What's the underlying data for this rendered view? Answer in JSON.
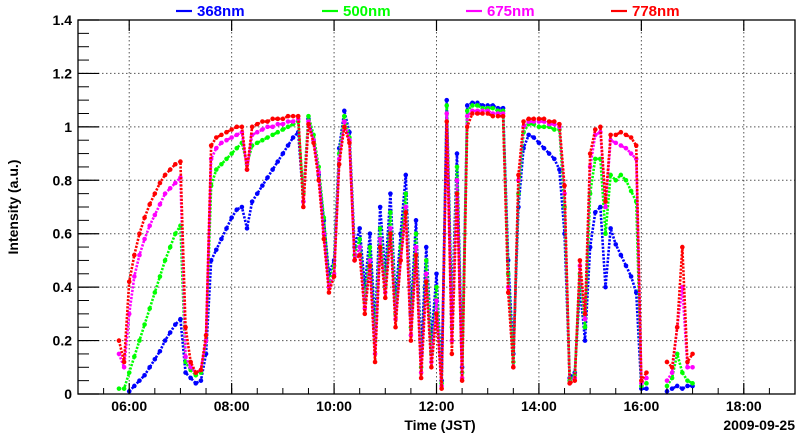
{
  "chart_data": {
    "type": "scatter",
    "title": "",
    "xlabel": "Time (JST)",
    "ylabel": "Intensity (a.u.)",
    "date_label": "2009-09-25",
    "xlim": [
      5.0,
      19.0
    ],
    "ylim": [
      0,
      1.4
    ],
    "grid": true,
    "legend_position": "top",
    "x_ticks": [
      {
        "value": 6,
        "label": "06:00"
      },
      {
        "value": 8,
        "label": "08:00"
      },
      {
        "value": 10,
        "label": "10:00"
      },
      {
        "value": 12,
        "label": "12:00"
      },
      {
        "value": 14,
        "label": "14:00"
      },
      {
        "value": 16,
        "label": "16:00"
      },
      {
        "value": 18,
        "label": "18:00"
      }
    ],
    "y_ticks": [
      {
        "value": 0,
        "label": "0"
      },
      {
        "value": 0.2,
        "label": "0.2"
      },
      {
        "value": 0.4,
        "label": "0.4"
      },
      {
        "value": 0.6,
        "label": "0.6"
      },
      {
        "value": 0.8,
        "label": "0.8"
      },
      {
        "value": 1.0,
        "label": "1"
      },
      {
        "value": 1.2,
        "label": "1.2"
      },
      {
        "value": 1.4,
        "label": "1.4"
      }
    ],
    "x": [
      5.8,
      5.9,
      6.0,
      6.1,
      6.2,
      6.3,
      6.4,
      6.5,
      6.6,
      6.7,
      6.8,
      6.9,
      7.0,
      7.1,
      7.2,
      7.3,
      7.4,
      7.5,
      7.6,
      7.7,
      7.8,
      7.9,
      8.0,
      8.1,
      8.2,
      8.3,
      8.4,
      8.5,
      8.6,
      8.7,
      8.8,
      8.9,
      9.0,
      9.1,
      9.2,
      9.3,
      9.4,
      9.5,
      9.6,
      9.7,
      9.8,
      9.9,
      10.0,
      10.1,
      10.2,
      10.3,
      10.4,
      10.5,
      10.6,
      10.7,
      10.8,
      10.9,
      11.0,
      11.1,
      11.2,
      11.3,
      11.4,
      11.5,
      11.6,
      11.7,
      11.8,
      11.9,
      12.0,
      12.1,
      12.2,
      12.3,
      12.4,
      12.5,
      12.6,
      12.7,
      12.8,
      12.9,
      13.0,
      13.1,
      13.2,
      13.3,
      13.4,
      13.5,
      13.6,
      13.7,
      13.8,
      13.9,
      14.0,
      14.1,
      14.2,
      14.3,
      14.4,
      14.5,
      14.6,
      14.7,
      14.8,
      14.9,
      15.0,
      15.1,
      15.2,
      15.3,
      15.4,
      15.5,
      15.6,
      15.7,
      15.8,
      15.9,
      16.0,
      16.1,
      16.2,
      16.3,
      16.4,
      16.5,
      16.6,
      16.7,
      16.8,
      16.9,
      17.0
    ],
    "series": [
      {
        "name": "368nm",
        "color": "#0000ff",
        "values": [
          null,
          null,
          0.01,
          0.03,
          0.05,
          0.07,
          0.1,
          0.13,
          0.16,
          0.2,
          0.23,
          0.26,
          0.28,
          0.08,
          0.06,
          0.04,
          0.05,
          0.15,
          0.5,
          0.54,
          0.58,
          0.62,
          0.66,
          0.69,
          0.7,
          0.62,
          0.72,
          0.75,
          0.78,
          0.81,
          0.84,
          0.87,
          0.9,
          0.93,
          0.96,
          0.98,
          0.72,
          1.03,
          0.95,
          0.82,
          0.65,
          0.45,
          0.5,
          0.92,
          1.06,
          0.98,
          0.55,
          0.62,
          0.4,
          0.6,
          0.25,
          0.7,
          0.45,
          0.75,
          0.35,
          0.6,
          0.82,
          0.3,
          0.65,
          0.15,
          0.55,
          0.2,
          0.45,
          0.05,
          1.1,
          0.3,
          0.9,
          0.1,
          1.08,
          1.09,
          1.09,
          1.08,
          1.08,
          1.08,
          1.07,
          1.07,
          0.5,
          0.15,
          0.7,
          0.92,
          0.97,
          0.96,
          0.94,
          0.92,
          0.9,
          0.88,
          0.84,
          0.6,
          0.06,
          0.08,
          0.4,
          0.2,
          0.55,
          0.68,
          0.7,
          0.4,
          0.62,
          0.56,
          0.52,
          0.48,
          0.44,
          0.38,
          0.02,
          0.02,
          null,
          null,
          null,
          0.01,
          0.02,
          0.03,
          0.02,
          0.03,
          0.03
        ]
      },
      {
        "name": "500nm",
        "color": "#00ff00",
        "values": [
          0.02,
          0.02,
          0.08,
          0.14,
          0.2,
          0.26,
          0.32,
          0.38,
          0.44,
          0.5,
          0.55,
          0.6,
          0.63,
          0.12,
          0.09,
          0.07,
          0.08,
          0.2,
          0.78,
          0.84,
          0.86,
          0.88,
          0.9,
          0.92,
          0.94,
          0.86,
          0.93,
          0.94,
          0.95,
          0.96,
          0.97,
          0.98,
          0.99,
          1.0,
          1.01,
          1.02,
          0.75,
          1.04,
          0.97,
          0.85,
          0.66,
          0.42,
          0.48,
          0.9,
          1.04,
          0.96,
          0.52,
          0.58,
          0.35,
          0.55,
          0.2,
          0.62,
          0.4,
          0.68,
          0.3,
          0.55,
          0.75,
          0.25,
          0.6,
          0.1,
          0.5,
          0.15,
          0.4,
          0.04,
          1.08,
          0.25,
          0.85,
          0.08,
          1.06,
          1.08,
          1.08,
          1.07,
          1.07,
          1.07,
          1.06,
          1.06,
          0.45,
          0.12,
          0.75,
          0.98,
          1.01,
          1.01,
          1.0,
          1.0,
          1.0,
          0.99,
          0.99,
          0.7,
          0.05,
          0.07,
          0.45,
          0.25,
          0.75,
          0.88,
          0.88,
          0.6,
          0.82,
          0.8,
          0.82,
          0.8,
          0.76,
          0.72,
          0.03,
          0.04,
          null,
          null,
          null,
          0.03,
          0.06,
          0.15,
          0.08,
          0.05,
          0.04
        ]
      },
      {
        "name": "675nm",
        "color": "#ff00ff",
        "values": [
          0.15,
          0.1,
          0.3,
          0.44,
          0.52,
          0.58,
          0.63,
          0.67,
          0.71,
          0.75,
          0.77,
          0.79,
          0.81,
          0.14,
          0.1,
          0.08,
          0.09,
          0.2,
          0.88,
          0.92,
          0.94,
          0.95,
          0.96,
          0.97,
          0.98,
          0.84,
          0.97,
          0.98,
          0.99,
          1.0,
          1.0,
          1.01,
          1.01,
          1.02,
          1.02,
          1.03,
          0.72,
          1.02,
          0.95,
          0.83,
          0.6,
          0.4,
          0.45,
          0.88,
          1.02,
          0.95,
          0.5,
          0.55,
          0.32,
          0.5,
          0.15,
          0.58,
          0.38,
          0.62,
          0.28,
          0.5,
          0.7,
          0.22,
          0.55,
          0.08,
          0.45,
          0.12,
          0.35,
          0.03,
          1.05,
          0.2,
          0.8,
          0.06,
          1.04,
          1.06,
          1.06,
          1.06,
          1.06,
          1.05,
          1.05,
          1.05,
          0.4,
          0.1,
          0.8,
          1.0,
          1.02,
          1.02,
          1.02,
          1.02,
          1.01,
          1.01,
          1.0,
          0.75,
          0.04,
          0.06,
          0.48,
          0.28,
          0.85,
          0.97,
          0.98,
          0.7,
          0.95,
          0.94,
          0.93,
          0.92,
          0.9,
          0.88,
          0.04,
          0.06,
          null,
          null,
          null,
          0.05,
          0.08,
          0.25,
          0.4,
          0.1,
          0.1
        ]
      },
      {
        "name": "778nm",
        "color": "#ff0000",
        "values": [
          0.2,
          0.12,
          0.42,
          0.52,
          0.6,
          0.66,
          0.71,
          0.75,
          0.79,
          0.82,
          0.84,
          0.86,
          0.87,
          0.25,
          0.12,
          0.08,
          0.09,
          0.22,
          0.93,
          0.96,
          0.97,
          0.98,
          0.99,
          1.0,
          1.0,
          0.84,
          1.0,
          1.01,
          1.02,
          1.02,
          1.03,
          1.03,
          1.03,
          1.04,
          1.04,
          1.04,
          0.7,
          1.01,
          0.94,
          0.8,
          0.58,
          0.38,
          0.44,
          0.86,
          1.0,
          0.94,
          0.5,
          0.52,
          0.3,
          0.48,
          0.12,
          0.55,
          0.36,
          0.6,
          0.25,
          0.5,
          0.68,
          0.2,
          0.52,
          0.06,
          0.42,
          0.1,
          0.3,
          0.02,
          1.02,
          0.15,
          0.75,
          0.05,
          1.0,
          1.05,
          1.05,
          1.05,
          1.05,
          1.04,
          1.04,
          1.04,
          0.38,
          0.1,
          0.82,
          1.02,
          1.03,
          1.03,
          1.03,
          1.03,
          1.02,
          1.02,
          1.01,
          0.78,
          0.04,
          0.05,
          0.5,
          0.3,
          0.9,
          0.99,
          1.0,
          0.72,
          0.97,
          0.97,
          0.98,
          0.97,
          0.96,
          0.93,
          0.05,
          0.08,
          null,
          null,
          null,
          0.12,
          0.1,
          0.25,
          0.55,
          0.12,
          0.15
        ]
      }
    ]
  }
}
